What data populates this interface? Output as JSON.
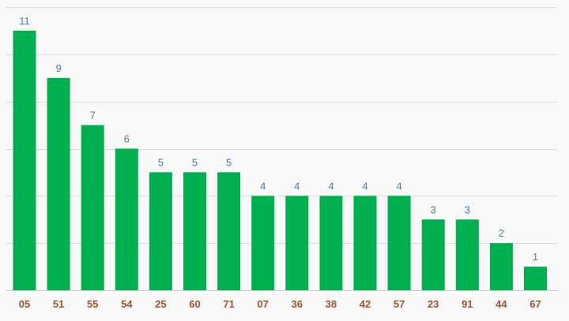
{
  "chart_data": {
    "type": "bar",
    "categories": [
      "05",
      "51",
      "55",
      "54",
      "25",
      "60",
      "71",
      "07",
      "36",
      "38",
      "42",
      "57",
      "23",
      "91",
      "44",
      "67"
    ],
    "values": [
      11,
      9,
      7,
      6,
      5,
      5,
      5,
      4,
      4,
      4,
      4,
      4,
      3,
      3,
      2,
      1
    ],
    "title": "",
    "xlabel": "",
    "ylabel": "",
    "ylim": [
      0,
      12
    ],
    "grid": true,
    "legend": "none",
    "colors": {
      "bar": "#00b050",
      "value_label": "#4a7a99",
      "category_label": "#a0522d",
      "grid": "#dcdcdc",
      "background": "#f9f9f9"
    }
  }
}
